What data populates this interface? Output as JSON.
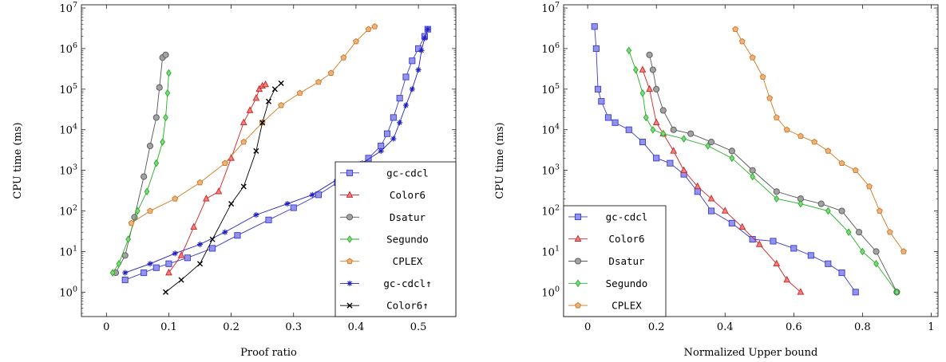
{
  "chart_data": [
    {
      "type": "line",
      "xlabel": "Proof ratio",
      "ylabel": "CPU time (ms)",
      "xlim": [
        -0.04,
        0.56
      ],
      "ylim": [
        0.25,
        12000000
      ],
      "yscale": "log",
      "xticks": [
        0,
        0.1,
        0.2,
        0.3,
        0.4,
        0.5
      ],
      "xtick_labels": [
        "0",
        "0.1",
        "0.2",
        "0.3",
        "0.4",
        "0.5"
      ],
      "yticks": [
        1,
        10,
        100,
        1000,
        10000,
        100000,
        1000000,
        10000000
      ],
      "ytick_labels": [
        "10^0",
        "10^1",
        "10^2",
        "10^3",
        "10^4",
        "10^5",
        "10^6",
        "10^7"
      ],
      "legend_position": "bottom-right",
      "series": [
        {
          "name": "gc-cdcl",
          "color": "#3a3ad6",
          "marker": "square",
          "x": [
            0.03,
            0.06,
            0.08,
            0.1,
            0.13,
            0.17,
            0.21,
            0.26,
            0.3,
            0.34,
            0.37,
            0.4,
            0.42,
            0.44,
            0.45,
            0.46,
            0.47,
            0.48,
            0.49,
            0.5,
            0.51,
            0.515
          ],
          "y": [
            2,
            3,
            4,
            5,
            7,
            12,
            25,
            60,
            120,
            250,
            500,
            1000,
            2000,
            4000,
            8000,
            20000,
            60000,
            200000,
            500000,
            1000000,
            2000000,
            3000000
          ]
        },
        {
          "name": "Color6",
          "color": "#d42020",
          "marker": "triangle",
          "x": [
            0.1,
            0.12,
            0.14,
            0.16,
            0.18,
            0.2,
            0.22,
            0.23,
            0.24,
            0.245,
            0.25,
            0.255
          ],
          "y": [
            3,
            8,
            40,
            200,
            300,
            2000,
            15000,
            30000,
            60000,
            100000,
            120000,
            130000
          ]
        },
        {
          "name": "Dsatur",
          "color": "#555555",
          "marker": "circle",
          "x": [
            0.015,
            0.03,
            0.045,
            0.06,
            0.07,
            0.08,
            0.085,
            0.09,
            0.095
          ],
          "y": [
            3,
            8,
            70,
            700,
            4000,
            20000,
            110000,
            600000,
            700000
          ]
        },
        {
          "name": "Segundo",
          "color": "#22b022",
          "marker": "diamond",
          "x": [
            0.01,
            0.02,
            0.035,
            0.05,
            0.065,
            0.08,
            0.09,
            0.095,
            0.098,
            0.1
          ],
          "y": [
            3,
            5,
            20,
            100,
            300,
            1500,
            5000,
            20000,
            80000,
            250000
          ]
        },
        {
          "name": "CPLEX",
          "color": "#d4761c",
          "marker": "pentagon",
          "x": [
            0.04,
            0.07,
            0.11,
            0.15,
            0.19,
            0.22,
            0.25,
            0.28,
            0.31,
            0.34,
            0.36,
            0.38,
            0.4,
            0.42,
            0.43
          ],
          "y": [
            50,
            100,
            200,
            500,
            1500,
            5000,
            15000,
            40000,
            80000,
            150000,
            250000,
            600000,
            1500000,
            3000000,
            3500000
          ]
        },
        {
          "name": "gc-cdcl↑",
          "color": "#2020c0",
          "marker": "star",
          "x": [
            0.03,
            0.07,
            0.11,
            0.15,
            0.19,
            0.24,
            0.29,
            0.33,
            0.37,
            0.41,
            0.44,
            0.46,
            0.47,
            0.48,
            0.49,
            0.5,
            0.505,
            0.51,
            0.515
          ],
          "y": [
            3,
            5,
            9,
            15,
            30,
            80,
            150,
            250,
            600,
            1500,
            3000,
            6000,
            15000,
            40000,
            100000,
            300000,
            900000,
            1800000,
            3000000
          ]
        },
        {
          "name": "Color6↑",
          "color": "#000000",
          "marker": "cross",
          "x": [
            0.095,
            0.12,
            0.15,
            0.17,
            0.2,
            0.22,
            0.24,
            0.25,
            0.26,
            0.27,
            0.28
          ],
          "y": [
            1,
            2,
            5,
            20,
            150,
            400,
            3000,
            15000,
            50000,
            100000,
            140000
          ]
        }
      ]
    },
    {
      "type": "line",
      "xlabel": "Normalized Upper bound",
      "ylabel": "CPU time (ms)",
      "xlim": [
        -0.07,
        1.02
      ],
      "ylim": [
        0.25,
        12000000
      ],
      "yscale": "log",
      "xticks": [
        0,
        0.2,
        0.4,
        0.6,
        0.8,
        1
      ],
      "xtick_labels": [
        "0",
        "0.2",
        "0.4",
        "0.6",
        "0.8",
        "1"
      ],
      "yticks": [
        1,
        10,
        100,
        1000,
        10000,
        100000,
        1000000,
        10000000
      ],
      "ytick_labels": [
        "10^0",
        "10^1",
        "10^2",
        "10^3",
        "10^4",
        "10^5",
        "10^6",
        "10^7"
      ],
      "legend_position": "bottom-left",
      "series": [
        {
          "name": "gc-cdcl",
          "color": "#3a3ad6",
          "marker": "square",
          "x": [
            0.02,
            0.025,
            0.03,
            0.04,
            0.06,
            0.08,
            0.12,
            0.16,
            0.2,
            0.24,
            0.28,
            0.32,
            0.36,
            0.42,
            0.48,
            0.54,
            0.6,
            0.65,
            0.7,
            0.74,
            0.78
          ],
          "y": [
            3500000,
            1000000,
            100000,
            50000,
            20000,
            15000,
            10000,
            5000,
            2000,
            1500,
            800,
            300,
            100,
            50,
            20,
            18,
            12,
            8,
            5,
            3,
            1
          ]
        },
        {
          "name": "Color6",
          "color": "#d42020",
          "marker": "triangle",
          "x": [
            0.16,
            0.18,
            0.2,
            0.22,
            0.25,
            0.28,
            0.32,
            0.36,
            0.4,
            0.45,
            0.5,
            0.55,
            0.58,
            0.62
          ],
          "y": [
            300000,
            100000,
            15000,
            8000,
            3000,
            1000,
            400,
            200,
            100,
            40,
            15,
            5,
            2,
            1
          ]
        },
        {
          "name": "Dsatur",
          "color": "#555555",
          "marker": "circle",
          "x": [
            0.18,
            0.19,
            0.2,
            0.22,
            0.25,
            0.3,
            0.36,
            0.42,
            0.48,
            0.55,
            0.62,
            0.68,
            0.74,
            0.79,
            0.84,
            0.9
          ],
          "y": [
            700000,
            300000,
            100000,
            30000,
            10000,
            8000,
            5000,
            3000,
            1000,
            300,
            200,
            150,
            100,
            30,
            10,
            1
          ]
        },
        {
          "name": "Segundo",
          "color": "#22b022",
          "marker": "diamond",
          "x": [
            0.12,
            0.14,
            0.16,
            0.17,
            0.19,
            0.22,
            0.28,
            0.35,
            0.42,
            0.48,
            0.55,
            0.62,
            0.7,
            0.76,
            0.8,
            0.84,
            0.9
          ],
          "y": [
            900000,
            300000,
            80000,
            20000,
            10000,
            8000,
            6000,
            4000,
            2000,
            700,
            200,
            150,
            100,
            30,
            10,
            5,
            1
          ]
        },
        {
          "name": "CPLEX",
          "color": "#d4761c",
          "marker": "pentagon",
          "x": [
            0.43,
            0.45,
            0.48,
            0.51,
            0.53,
            0.55,
            0.58,
            0.62,
            0.66,
            0.7,
            0.74,
            0.78,
            0.82,
            0.85,
            0.88,
            0.92
          ],
          "y": [
            3000000,
            1500000,
            600000,
            200000,
            60000,
            20000,
            10000,
            7000,
            5000,
            3000,
            1500,
            1000,
            400,
            100,
            30,
            10
          ]
        }
      ]
    }
  ]
}
